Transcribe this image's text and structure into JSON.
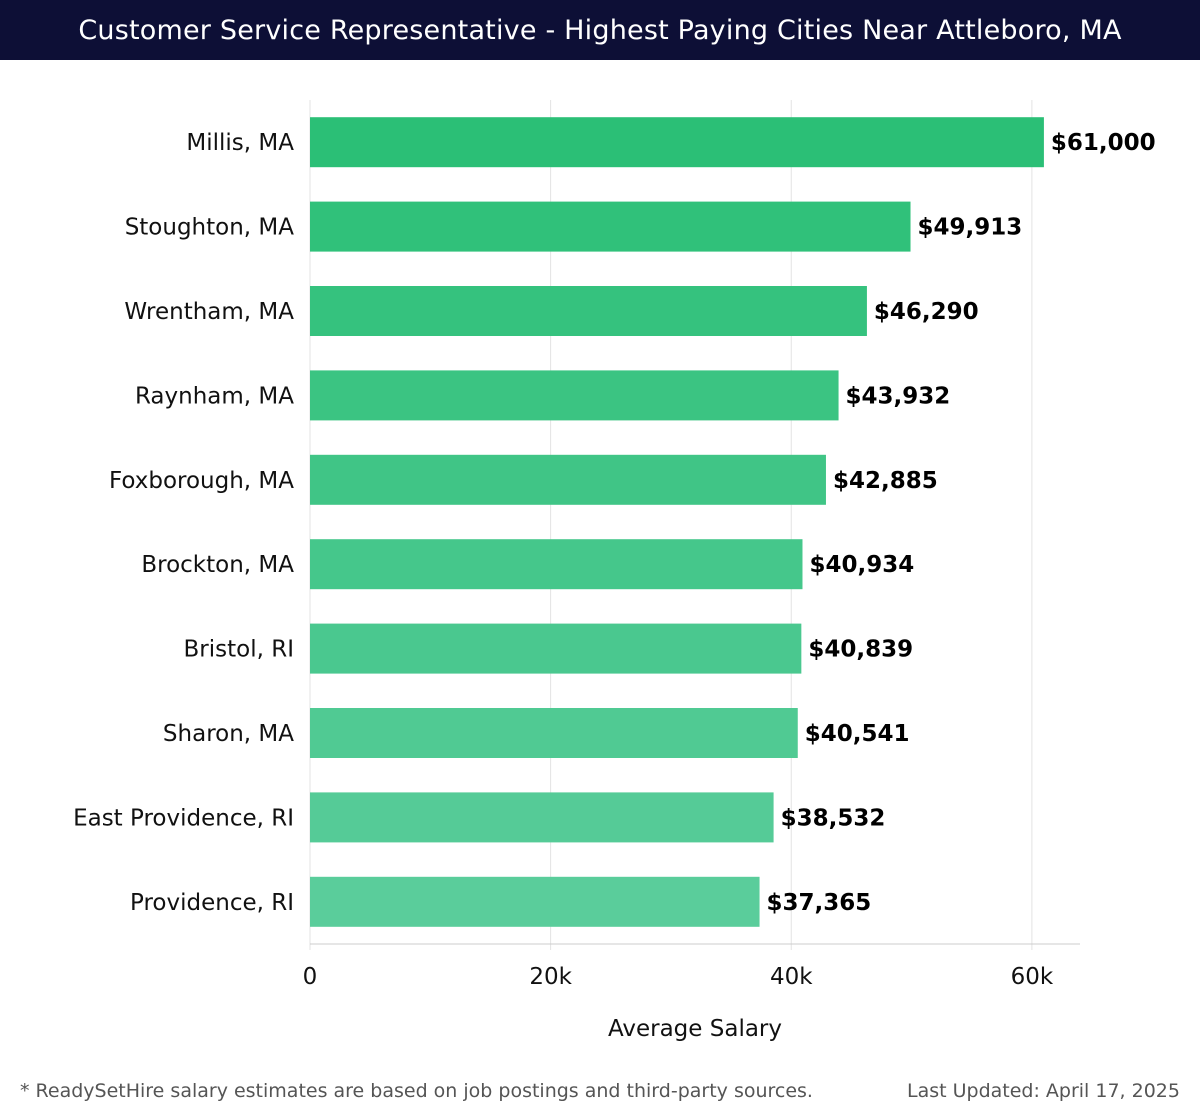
{
  "header": {
    "title": "Customer Service Representative - Highest Paying Cities Near Attleboro, MA"
  },
  "chart_data": {
    "type": "bar",
    "orientation": "horizontal",
    "categories": [
      "Millis, MA",
      "Stoughton, MA",
      "Wrentham, MA",
      "Raynham, MA",
      "Foxborough, MA",
      "Brockton, MA",
      "Bristol, RI",
      "Sharon, MA",
      "East Providence, RI",
      "Providence, RI"
    ],
    "values": [
      61000,
      49913,
      46290,
      43932,
      42885,
      40934,
      40839,
      40541,
      38532,
      37365
    ],
    "value_labels": [
      "$61,000",
      "$49,913",
      "$46,290",
      "$43,932",
      "$42,885",
      "$40,934",
      "$40,839",
      "$40,541",
      "$38,532",
      "$37,365"
    ],
    "xlabel": "Average Salary",
    "ylabel": "",
    "xlim": [
      0,
      64000
    ],
    "ticks": [
      0,
      20000,
      40000,
      60000
    ],
    "tick_labels": [
      "0",
      "20k",
      "40k",
      "60k"
    ],
    "grid": true,
    "colors": {
      "top_bar": "#2bbf76",
      "bar": "#3fc585",
      "grid": "#e3e3e3",
      "axis": "#cccccc"
    }
  },
  "footer": {
    "note": "* ReadySetHire salary estimates are based on job postings and third-party sources.",
    "updated": "Last Updated: April 17, 2025"
  }
}
